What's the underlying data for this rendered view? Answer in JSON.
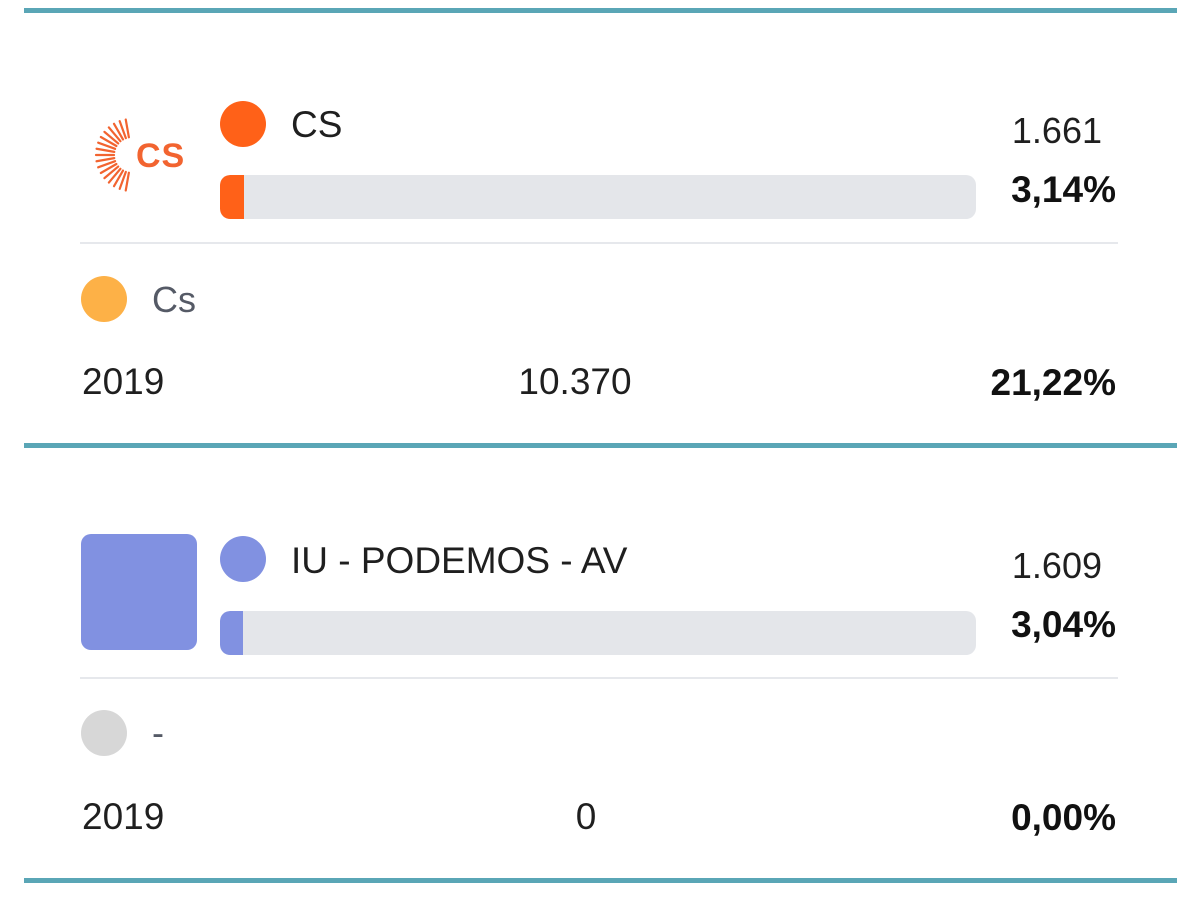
{
  "colors": {
    "rule": "#5aa6b6",
    "track": "#e4e6ea",
    "cs_logo": "#f26430"
  },
  "results": [
    {
      "logo_text": "CS",
      "party": "CS",
      "party_color": "#ff6118",
      "votes": "1.661",
      "percent": "3,14%",
      "percent_value": 3.14,
      "previous": {
        "party": "Cs",
        "party_color": "#fdb147",
        "year": "2019",
        "votes": "10.370",
        "percent": "21,22%"
      }
    },
    {
      "logo_text": "",
      "party": "IU - PODEMOS - AV",
      "party_color": "#8191e1",
      "votes": "1.609",
      "percent": "3,04%",
      "percent_value": 3.04,
      "previous": {
        "party": "-",
        "party_color": "#d7d7d7",
        "year": "2019",
        "votes": "0",
        "percent": "0,00%"
      }
    }
  ]
}
